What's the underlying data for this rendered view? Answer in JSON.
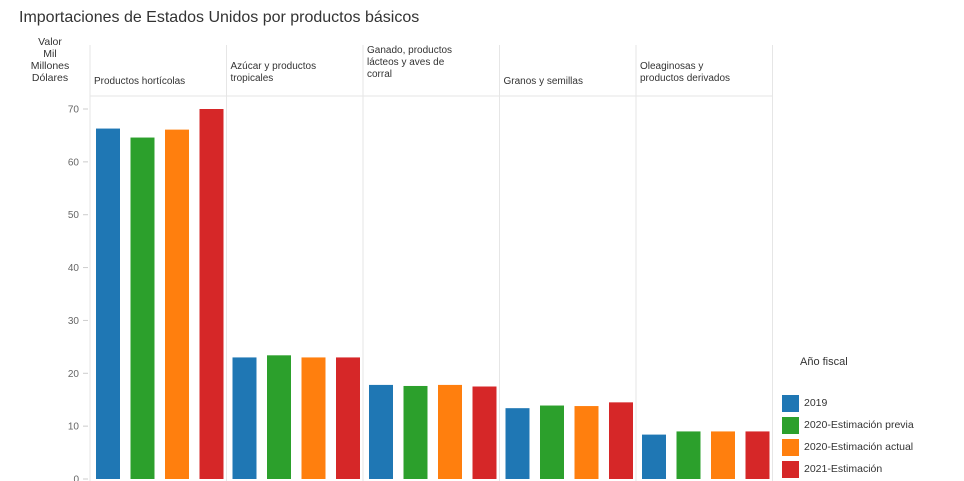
{
  "chart_data": {
    "type": "bar",
    "title": "Importaciones de Estados Unidos por productos básicos",
    "ylabel_lines": [
      "Valor",
      "Mil",
      "Millones",
      "Dólares"
    ],
    "ylim": [
      0,
      75
    ],
    "yticks": [
      0,
      10,
      20,
      30,
      40,
      50,
      60,
      70
    ],
    "grid": false,
    "legend_placement": "bottom-right",
    "legend_title": "Año fiscal",
    "categories": [
      "Productos hortícolas",
      "Azúcar y productos tropicales",
      "Ganado, productos lácteos y aves de corral",
      "Granos y semillas",
      "Oleaginosas y productos derivados"
    ],
    "category_label_lines": [
      [
        "Productos hortícolas"
      ],
      [
        "Azúcar y productos",
        "tropicales"
      ],
      [
        "Ganado, productos",
        "lácteos y aves de",
        "corral"
      ],
      [
        "Granos y semillas"
      ],
      [
        "Oleaginosas y",
        "productos derivados"
      ]
    ],
    "series": [
      {
        "name": "2019",
        "color": "#1f77b4",
        "values": [
          66.3,
          23.0,
          17.8,
          13.4,
          8.4
        ]
      },
      {
        "name": "2020-Estimación previa",
        "color": "#2ca02c",
        "values": [
          64.6,
          23.4,
          17.6,
          13.9,
          9.0
        ]
      },
      {
        "name": "2020-Estimación actual",
        "color": "#ff7f0e",
        "values": [
          66.1,
          23.0,
          17.8,
          13.8,
          9.0
        ]
      },
      {
        "name": "2021-Estimación",
        "color": "#d62728",
        "values": [
          70.0,
          23.0,
          17.5,
          14.5,
          9.0
        ]
      }
    ]
  }
}
